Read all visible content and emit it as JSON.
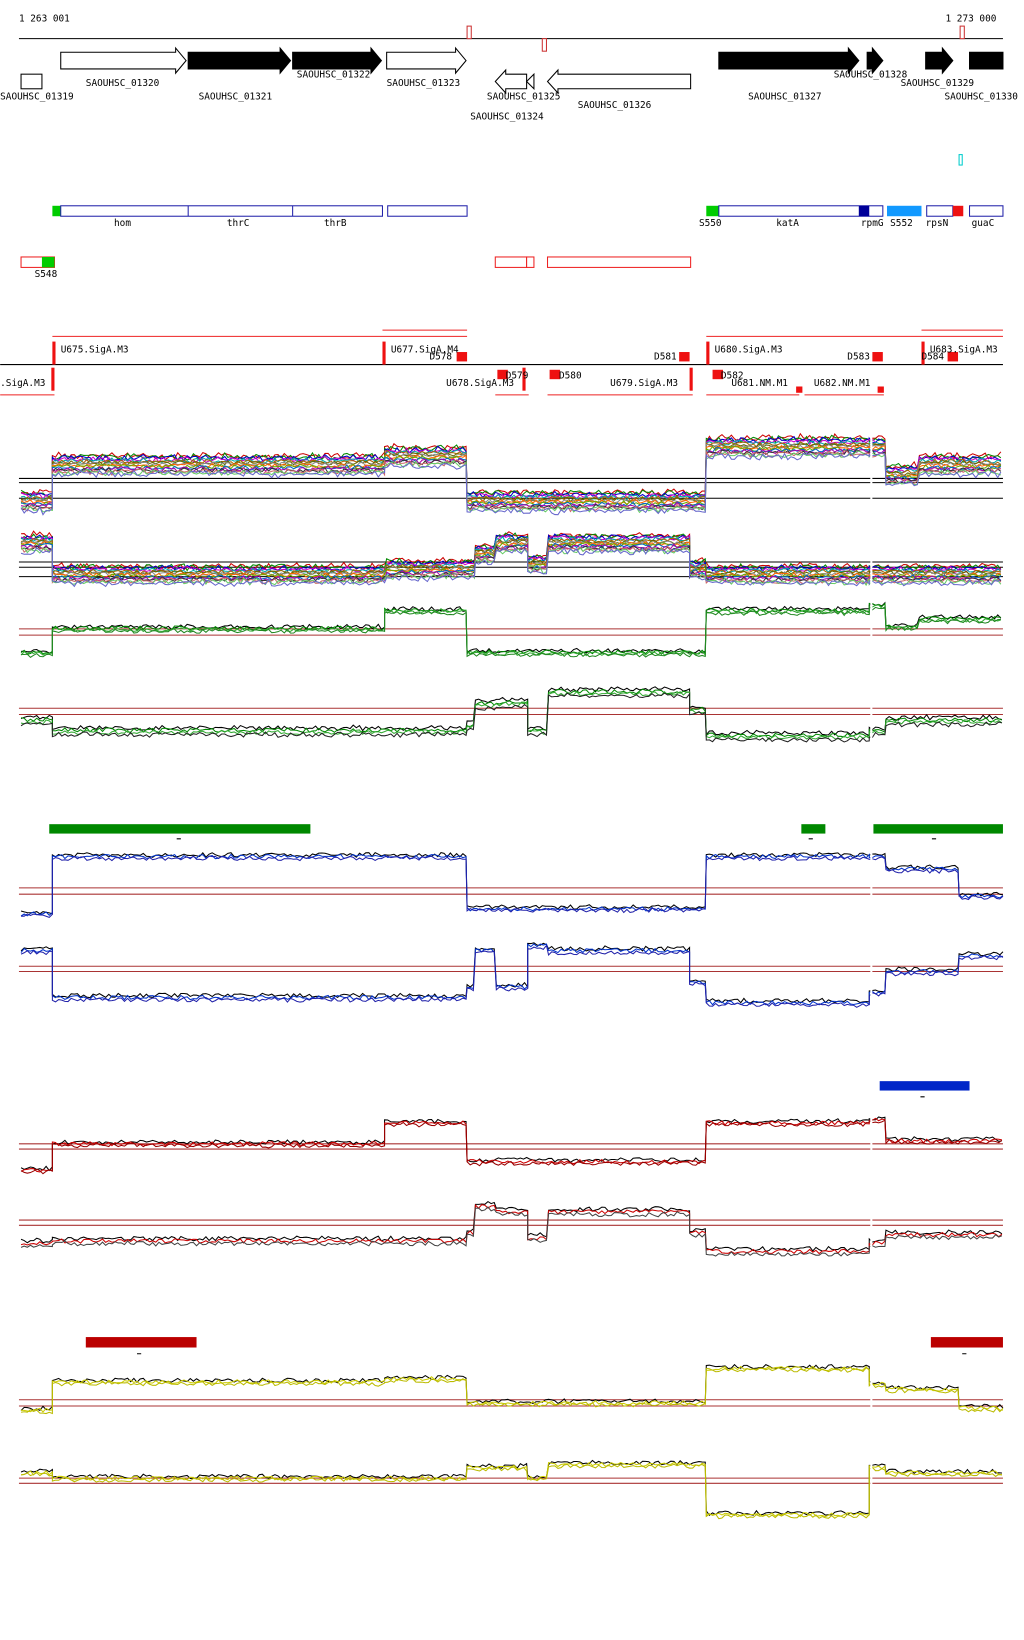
{
  "header": {
    "start": "1 263 001",
    "end": "1 273 000"
  },
  "genes": [
    {
      "label": "SAOUHSC_01319"
    },
    {
      "label": "SAOUHSC_01320"
    },
    {
      "label": "SAOUHSC_01321"
    },
    {
      "label": "SAOUHSC_01322"
    },
    {
      "label": "SAOUHSC_01323"
    },
    {
      "label": "SAOUHSC_01324"
    },
    {
      "label": "SAOUHSC_01325"
    },
    {
      "label": "SAOUHSC_01326"
    },
    {
      "label": "SAOUHSC_01327"
    },
    {
      "label": "SAOUHSC_01328"
    },
    {
      "label": "SAOUHSC_01329"
    },
    {
      "label": "SAOUHSC_01330"
    }
  ],
  "features": [
    {
      "label": "hom"
    },
    {
      "label": "thrC"
    },
    {
      "label": "thrB"
    },
    {
      "label": "S550"
    },
    {
      "label": "katA"
    },
    {
      "label": "rpmG"
    },
    {
      "label": "S552"
    },
    {
      "label": "rpsN"
    },
    {
      "label": "guaC"
    },
    {
      "label": "S548"
    }
  ],
  "promoters": [
    {
      "label": "U675.SigA.M3"
    },
    {
      "label": "U677.SigA.M4"
    },
    {
      "label": "D578"
    },
    {
      "label": "D579"
    },
    {
      "label": "D580"
    },
    {
      "label": "D581"
    },
    {
      "label": "U678.SigA.M3"
    },
    {
      "label": "U679.SigA.M3"
    },
    {
      "label": "U680.SigA.M3"
    },
    {
      "label": "D582"
    },
    {
      "label": "U681.NM.M1"
    },
    {
      "label": "U682.NM.M1"
    },
    {
      "label": "D583"
    },
    {
      "label": "D584"
    },
    {
      "label": "U683.SigA.M3"
    },
    {
      "label": ".SigA.M3"
    }
  ]
}
